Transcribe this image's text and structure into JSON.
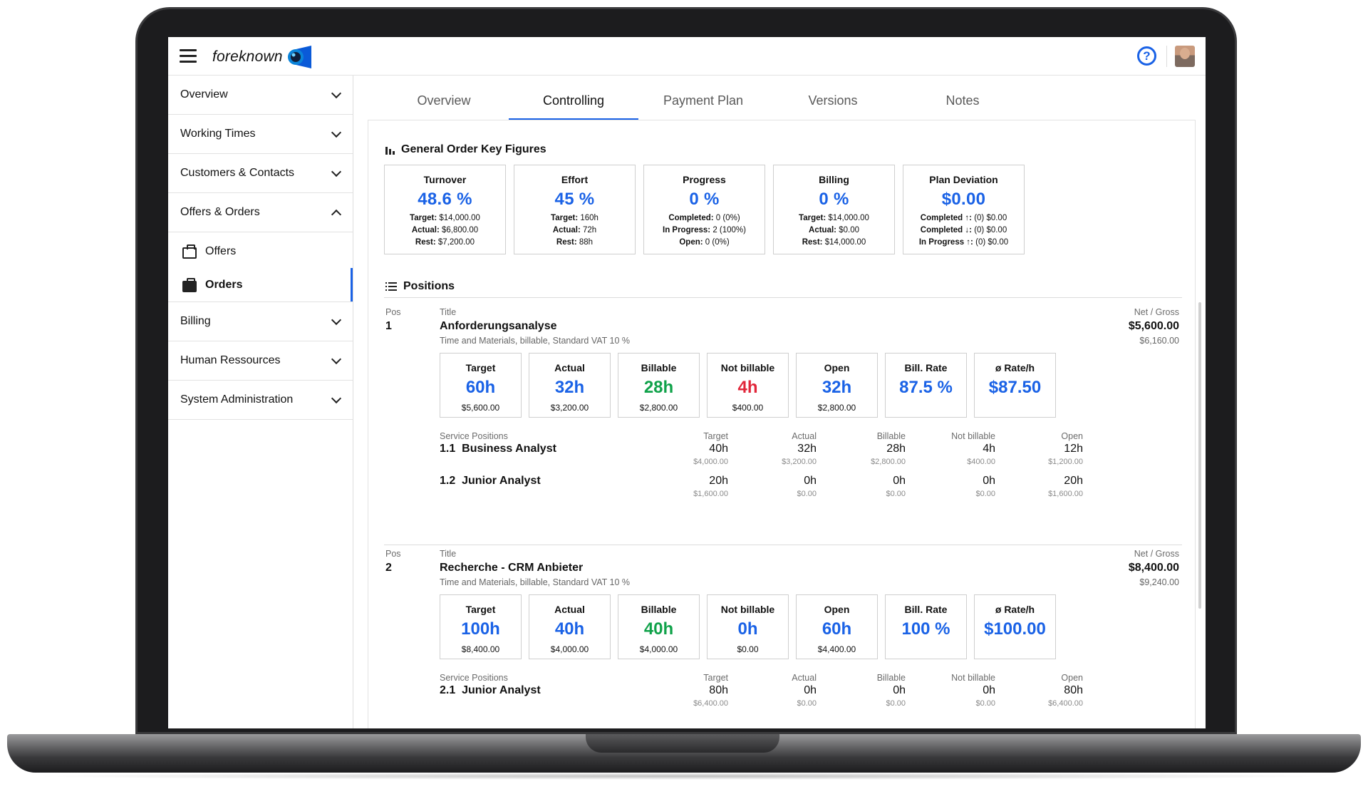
{
  "app": {
    "logo_text": "foreknown"
  },
  "sidebar": {
    "items": [
      {
        "label": "Overview"
      },
      {
        "label": "Working Times"
      },
      {
        "label": "Customers & Contacts"
      },
      {
        "label": "Offers & Orders"
      },
      {
        "label": "Billing"
      },
      {
        "label": "Human Ressources"
      },
      {
        "label": "System Administration"
      }
    ],
    "sub_items": [
      {
        "label": "Offers"
      },
      {
        "label": "Orders"
      }
    ]
  },
  "tabs": [
    {
      "label": "Overview"
    },
    {
      "label": "Controlling"
    },
    {
      "label": "Payment Plan"
    },
    {
      "label": "Versions"
    },
    {
      "label": "Notes"
    }
  ],
  "general": {
    "title": "General Order Key Figures",
    "cards": [
      {
        "label": "Turnover",
        "value": "48.6 %",
        "lines": [
          [
            "Target:",
            "$14,000.00"
          ],
          [
            "Actual:",
            "$6,800.00"
          ],
          [
            "Rest:",
            "$7,200.00"
          ]
        ]
      },
      {
        "label": "Effort",
        "value": "45 %",
        "lines": [
          [
            "Target:",
            "160h"
          ],
          [
            "Actual:",
            "72h"
          ],
          [
            "Rest:",
            "88h"
          ]
        ]
      },
      {
        "label": "Progress",
        "value": "0 %",
        "lines": [
          [
            "Completed:",
            "0 (0%)"
          ],
          [
            "In Progress:",
            "2 (100%)"
          ],
          [
            "Open:",
            "0 (0%)"
          ]
        ]
      },
      {
        "label": "Billing",
        "value": "0 %",
        "lines": [
          [
            "Target:",
            "$14,000.00"
          ],
          [
            "Actual:",
            "$0.00"
          ],
          [
            "Rest:",
            "$14,000.00"
          ]
        ]
      },
      {
        "label": "Plan Deviation",
        "value": "$0.00",
        "lines": [
          [
            "Completed ↑:",
            "(0) $0.00"
          ],
          [
            "Completed ↓:",
            "(0) $0.00"
          ],
          [
            "In Progress ↑:",
            "(0) $0.00"
          ]
        ]
      }
    ]
  },
  "positions": {
    "title": "Positions",
    "hdr_pos": "Pos",
    "hdr_title": "Title",
    "hdr_price": "Net / Gross",
    "hdr_service": "Service Positions",
    "col_headers": [
      "Target",
      "Actual",
      "Billable",
      "Not billable",
      "Open"
    ],
    "items": [
      {
        "num": "1",
        "title": "Anforderungsanalyse",
        "subtitle": "Time and Materials, billable, Standard VAT 10 %",
        "net": "$5,600.00",
        "gross": "$6,160.00",
        "boxes": [
          {
            "label": "Target",
            "value": "60h",
            "amount": "$5,600.00"
          },
          {
            "label": "Actual",
            "value": "32h",
            "amount": "$3,200.00"
          },
          {
            "label": "Billable",
            "value": "28h",
            "amount": "$2,800.00"
          },
          {
            "label": "Not billable",
            "value": "4h",
            "amount": "$400.00"
          },
          {
            "label": "Open",
            "value": "32h",
            "amount": "$2,800.00"
          },
          {
            "label": "Bill. Rate",
            "value": "87.5 %",
            "amount": ""
          },
          {
            "label": "ø Rate/h",
            "value": "$87.50",
            "amount": ""
          }
        ],
        "services": [
          {
            "name": "1.1  Business Analyst",
            "vals": [
              [
                "40h",
                "$4,000.00"
              ],
              [
                "32h",
                "$3,200.00"
              ],
              [
                "28h",
                "$2,800.00"
              ],
              [
                "4h",
                "$400.00"
              ],
              [
                "12h",
                "$1,200.00"
              ]
            ]
          },
          {
            "name": "1.2  Junior Analyst",
            "vals": [
              [
                "20h",
                "$1,600.00"
              ],
              [
                "0h",
                "$0.00"
              ],
              [
                "0h",
                "$0.00"
              ],
              [
                "0h",
                "$0.00"
              ],
              [
                "20h",
                "$1,600.00"
              ]
            ]
          }
        ]
      },
      {
        "num": "2",
        "title": "Recherche - CRM Anbieter",
        "subtitle": "Time and Materials, billable, Standard VAT 10 %",
        "net": "$8,400.00",
        "gross": "$9,240.00",
        "boxes": [
          {
            "label": "Target",
            "value": "100h",
            "amount": "$8,400.00"
          },
          {
            "label": "Actual",
            "value": "40h",
            "amount": "$4,000.00"
          },
          {
            "label": "Billable",
            "value": "40h",
            "amount": "$4,000.00"
          },
          {
            "label": "Not billable",
            "value": "0h",
            "amount": "$0.00"
          },
          {
            "label": "Open",
            "value": "60h",
            "amount": "$4,400.00"
          },
          {
            "label": "Bill. Rate",
            "value": "100 %",
            "amount": ""
          },
          {
            "label": "ø Rate/h",
            "value": "$100.00",
            "amount": ""
          }
        ],
        "services": [
          {
            "name": "2.1  Junior Analyst",
            "vals": [
              [
                "80h",
                "$6,400.00"
              ],
              [
                "0h",
                "$0.00"
              ],
              [
                "0h",
                "$0.00"
              ],
              [
                "0h",
                "$0.00"
              ],
              [
                "80h",
                "$6,400.00"
              ]
            ]
          }
        ]
      }
    ]
  },
  "colors": {
    "accent": "#1a62e6",
    "green": "#10a24a",
    "red": "#e1263a"
  }
}
